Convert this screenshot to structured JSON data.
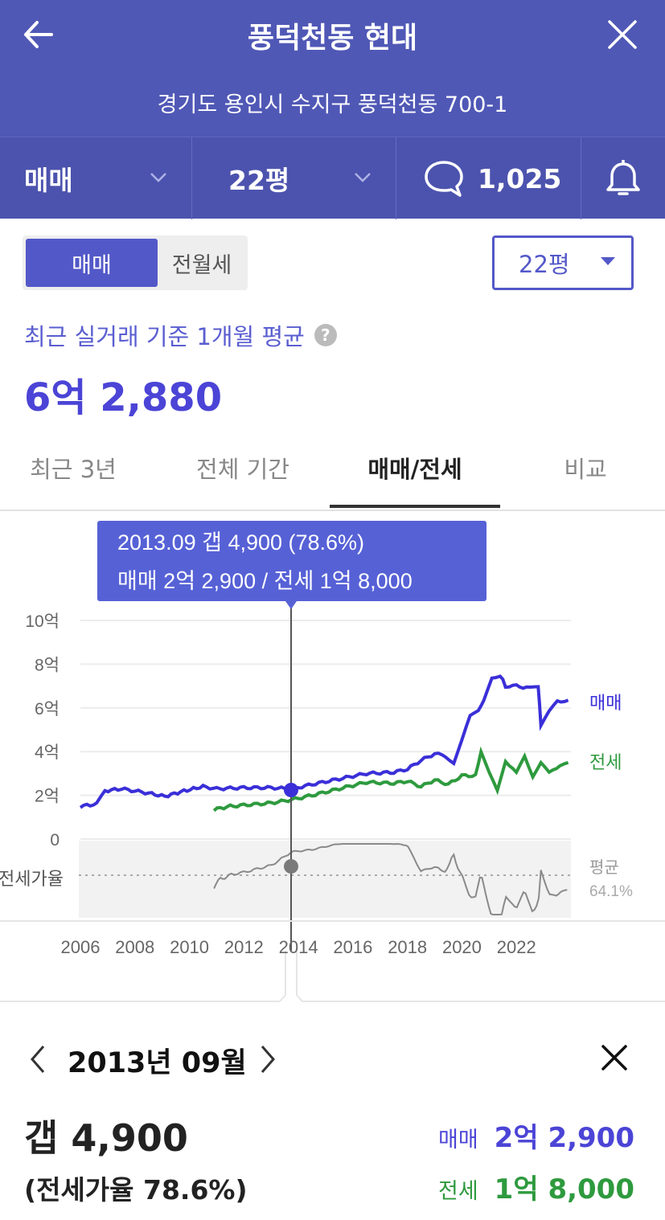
{
  "header": {
    "title": "풍덕천동 현대",
    "address": "경기도 용인시 수지구 풍덕천동 700-1",
    "trade_type": "매매",
    "area": "22평",
    "comment_count": "1,025"
  },
  "toggle": {
    "left": "매매",
    "right": "전월세"
  },
  "area_select": "22평",
  "summary": {
    "caption": "최근 실거래 기준 1개월 평균",
    "help": "?",
    "price": "6억 2,880"
  },
  "tabs": [
    "최근 3년",
    "전체 기간",
    "매매/전세",
    "비교"
  ],
  "tooltip": {
    "line1": "2013.09  갭 4,900 (78.6%)",
    "line2": "매매 2억 2,900 / 전세 1억 8,000"
  },
  "colors": {
    "header": "#5058b6",
    "accent": "#4b44d6",
    "sale": "#3a2fd8",
    "jeonse": "#2e9a3e",
    "ratio": "#8a8a8a"
  },
  "chart_data": {
    "type": "line",
    "y_ticks": [
      "10억",
      "8억",
      "6억",
      "4억",
      "2억",
      "0"
    ],
    "ratio_label": "전세가율",
    "avg_label": "평균",
    "avg_value": "64.1%",
    "x_ticks": [
      "2006",
      "2008",
      "2010",
      "2012",
      "2014",
      "2016",
      "2018",
      "2020",
      "2022"
    ],
    "ylim": [
      0,
      10
    ],
    "series": [
      {
        "name": "매매",
        "points": [
          [
            2006.0,
            1.5
          ],
          [
            2006.6,
            1.6
          ],
          [
            2006.9,
            2.2
          ],
          [
            2007.5,
            2.3
          ],
          [
            2008.5,
            2.1
          ],
          [
            2009.1,
            1.95
          ],
          [
            2009.8,
            2.2
          ],
          [
            2010.5,
            2.4
          ],
          [
            2011.0,
            2.3
          ],
          [
            2012.0,
            2.35
          ],
          [
            2013.0,
            2.35
          ],
          [
            2013.75,
            2.29
          ],
          [
            2014.5,
            2.5
          ],
          [
            2015.5,
            2.75
          ],
          [
            2016.5,
            3.0
          ],
          [
            2017.5,
            3.05
          ],
          [
            2018.0,
            3.2
          ],
          [
            2018.5,
            3.6
          ],
          [
            2019.0,
            3.9
          ],
          [
            2019.4,
            3.8
          ],
          [
            2019.7,
            3.5
          ],
          [
            2020.0,
            4.5
          ],
          [
            2020.3,
            5.6
          ],
          [
            2020.6,
            5.9
          ],
          [
            2020.8,
            6.3
          ],
          [
            2021.1,
            7.4
          ],
          [
            2021.4,
            7.5
          ],
          [
            2021.6,
            7.0
          ],
          [
            2022.0,
            7.0
          ],
          [
            2022.5,
            6.9
          ],
          [
            2022.8,
            7.0
          ],
          [
            2022.9,
            5.2
          ],
          [
            2023.2,
            5.8
          ],
          [
            2023.5,
            6.3
          ],
          [
            2023.9,
            6.35
          ]
        ]
      },
      {
        "name": "전세",
        "points": [
          [
            2010.9,
            1.35
          ],
          [
            2011.5,
            1.5
          ],
          [
            2012.5,
            1.6
          ],
          [
            2013.0,
            1.65
          ],
          [
            2013.75,
            1.8
          ],
          [
            2014.5,
            2.0
          ],
          [
            2015.5,
            2.3
          ],
          [
            2016.5,
            2.6
          ],
          [
            2017.5,
            2.55
          ],
          [
            2018.0,
            2.65
          ],
          [
            2018.5,
            2.4
          ],
          [
            2019.0,
            2.7
          ],
          [
            2019.5,
            2.5
          ],
          [
            2020.0,
            2.9
          ],
          [
            2020.5,
            2.9
          ],
          [
            2020.7,
            4.0
          ],
          [
            2021.0,
            3.0
          ],
          [
            2021.3,
            2.2
          ],
          [
            2021.6,
            3.6
          ],
          [
            2022.0,
            3.0
          ],
          [
            2022.3,
            3.8
          ],
          [
            2022.6,
            2.9
          ],
          [
            2022.9,
            3.5
          ],
          [
            2023.2,
            3.0
          ],
          [
            2023.6,
            3.4
          ],
          [
            2023.9,
            3.5
          ]
        ]
      }
    ]
  },
  "detail": {
    "date": "2013년 09월",
    "gap": "갭 4,900",
    "ratio": "(전세가율 78.6%)",
    "sale_label": "매매",
    "sale_value": "2억 2,900",
    "jeonse_label": "전세",
    "jeonse_value": "1억 8,000"
  }
}
